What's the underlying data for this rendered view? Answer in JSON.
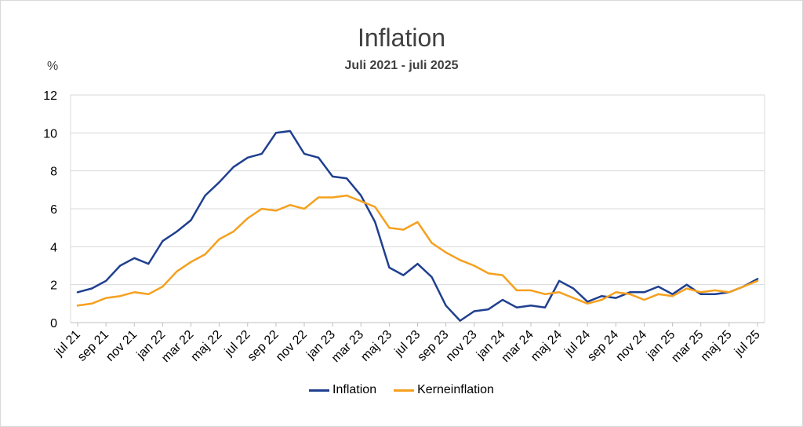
{
  "chart_data": {
    "type": "line",
    "title": "Inflation",
    "subtitle": "Juli 2021 - juli 2025",
    "ylabel": "%",
    "ylim": [
      0,
      12
    ],
    "yticks": [
      0,
      2,
      4,
      6,
      8,
      10,
      12
    ],
    "grid": true,
    "legend_position": "bottom",
    "tick_labels": [
      "jul 21",
      "sep 21",
      "nov 21",
      "jan 22",
      "mar 22",
      "maj 22",
      "jul 22",
      "sep 22",
      "nov 22",
      "jan 23",
      "mar 23",
      "maj 23",
      "jul 23",
      "sep 23",
      "nov 23",
      "jan 24",
      "mar 24",
      "maj 24",
      "jul 24",
      "sep 24",
      "nov 24",
      "jan 25",
      "mar 25",
      "maj 25",
      "jul 25"
    ],
    "series": [
      {
        "name": "Inflation",
        "color": "#1f3f8f",
        "values": [
          1.6,
          1.8,
          2.2,
          3.0,
          3.4,
          3.1,
          4.3,
          4.8,
          5.4,
          6.7,
          7.4,
          8.2,
          8.7,
          8.9,
          10.0,
          10.1,
          8.9,
          8.7,
          7.7,
          7.6,
          6.7,
          5.3,
          2.9,
          2.5,
          3.1,
          2.4,
          0.9,
          0.1,
          0.6,
          0.7,
          1.2,
          0.8,
          0.9,
          0.8,
          2.2,
          1.8,
          1.1,
          1.4,
          1.3,
          1.6,
          1.6,
          1.9,
          1.5,
          2.0,
          1.5,
          1.5,
          1.6,
          1.9,
          2.3
        ]
      },
      {
        "name": "Kerneinflation",
        "color": "#f5a01e",
        "values": [
          0.9,
          1.0,
          1.3,
          1.4,
          1.6,
          1.5,
          1.9,
          2.7,
          3.2,
          3.6,
          4.4,
          4.8,
          5.5,
          6.0,
          5.9,
          6.2,
          6.0,
          6.6,
          6.6,
          6.7,
          6.4,
          6.1,
          5.0,
          4.9,
          5.3,
          4.2,
          3.7,
          3.3,
          3.0,
          2.6,
          2.5,
          1.7,
          1.7,
          1.5,
          1.6,
          1.3,
          1.0,
          1.2,
          1.6,
          1.5,
          1.2,
          1.5,
          1.4,
          1.8,
          1.6,
          1.7,
          1.6,
          1.9,
          2.2
        ]
      }
    ]
  }
}
